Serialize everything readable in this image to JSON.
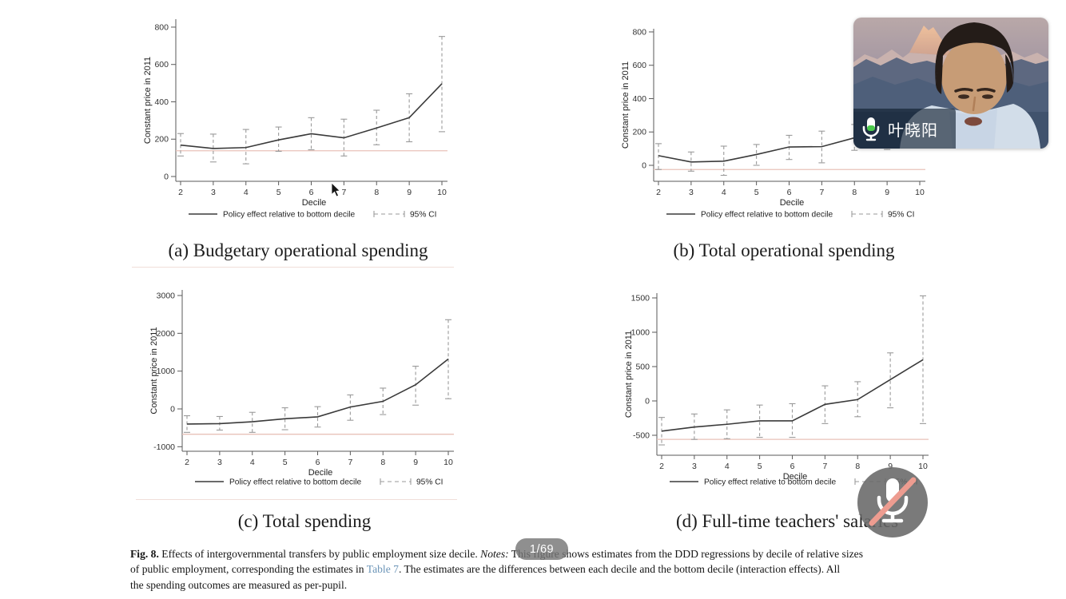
{
  "video_call": {
    "participant_name": "叶晓阳",
    "page_indicator": "1/69",
    "mic_status": "muted"
  },
  "style": {
    "line_color": "#3a3a3a",
    "ci_color": "#9a9a9a",
    "ref_line_color": "#e9c2b9",
    "axis_color": "#5a5a5a",
    "link_color": "#6b94b7",
    "mic_level_color": "#4ccc4c",
    "mute_slash_color": "#ed9c90"
  },
  "figure": {
    "caption_lines": [
      [
        {
          "s": "bold",
          "t": "Fig. 8."
        },
        {
          "s": "normal",
          "t": " Effects of intergovernmental transfers by public employment size decile. "
        },
        {
          "s": "italic",
          "t": "Notes:"
        },
        {
          "s": "normal",
          "t": " This figure shows estimates from the DDD regressions by decile of relative sizes"
        }
      ],
      [
        {
          "s": "normal",
          "t": "of public employment, corresponding the estimates in "
        },
        {
          "s": "link",
          "t": "Table 7"
        },
        {
          "s": "normal",
          "t": ". The estimates are the differences between each decile and the bottom decile (interaction effects). All"
        }
      ],
      [
        {
          "s": "normal",
          "t": "the spending outcomes are measured as per-pupil."
        }
      ]
    ]
  },
  "chart_data": [
    {
      "type": "line",
      "title": "(a) Budgetary operational spending",
      "xlabel": "Decile",
      "ylabel": "Constant price in 2011",
      "x": [
        2,
        3,
        4,
        5,
        6,
        7,
        8,
        9,
        10
      ],
      "y_ticks": [
        0,
        200,
        400,
        600,
        800
      ],
      "ylim": [
        -30,
        870
      ],
      "series": [
        {
          "name": "Policy effect relative to bottom decile",
          "values": [
            168,
            150,
            155,
            196,
            229,
            207,
            260,
            315,
            497
          ]
        }
      ],
      "ci_low": [
        110,
        78,
        68,
        135,
        143,
        110,
        170,
        186,
        240
      ],
      "ci_high": [
        230,
        227,
        252,
        265,
        315,
        307,
        355,
        443,
        750
      ],
      "ci_label": "95% CI",
      "ref_line": 138
    },
    {
      "type": "line",
      "title": "(b) Total operational spending",
      "xlabel": "Decile",
      "ylabel": "Constant price in 2011",
      "x": [
        2,
        3,
        4,
        5,
        6,
        7,
        8,
        9,
        10
      ],
      "y_ticks": [
        0,
        200,
        400,
        600,
        800
      ],
      "ylim": [
        -95,
        880
      ],
      "series": [
        {
          "name": "Policy effect relative to bottom decile",
          "values": [
            58,
            20,
            25,
            65,
            110,
            112,
            165,
            185,
            215
          ]
        }
      ],
      "ci_low": [
        -25,
        -35,
        -60,
        0,
        35,
        15,
        90,
        95,
        110
      ],
      "ci_high": [
        130,
        80,
        115,
        125,
        180,
        205,
        245,
        265,
        320
      ],
      "ci_label": "95% CI",
      "ref_line": -25
    },
    {
      "type": "line",
      "title": "(c) Total spending",
      "xlabel": "Decile",
      "ylabel": "Constant price in 2011",
      "x": [
        2,
        3,
        4,
        5,
        6,
        7,
        8,
        9,
        10
      ],
      "y_ticks": [
        -1000,
        0,
        1000,
        2000,
        3000
      ],
      "ylim": [
        -1120,
        3150
      ],
      "series": [
        {
          "name": "Policy effect relative to bottom decile",
          "values": [
            -400,
            -390,
            -340,
            -260,
            -210,
            50,
            200,
            640,
            1320
          ]
        }
      ],
      "ci_low": [
        -620,
        -560,
        -620,
        -550,
        -480,
        -300,
        -150,
        100,
        270
      ],
      "ci_high": [
        -180,
        -200,
        -90,
        30,
        60,
        370,
        550,
        1130,
        2360
      ],
      "ci_label": "95% CI",
      "ref_line": -670
    },
    {
      "type": "line",
      "title": "(d) Full-time teachers' salaries",
      "xlabel": "Decile",
      "ylabel": "Constant price in 2011",
      "x": [
        2,
        3,
        4,
        5,
        6,
        7,
        8,
        9,
        10
      ],
      "y_ticks": [
        -500,
        0,
        500,
        1000,
        1500
      ],
      "ylim": [
        -790,
        1580
      ],
      "series": [
        {
          "name": "Policy effect relative to bottom decile",
          "values": [
            -440,
            -380,
            -340,
            -290,
            -290,
            -50,
            20,
            310,
            600
          ]
        }
      ],
      "ci_low": [
        -640,
        -560,
        -550,
        -530,
        -530,
        -330,
        -230,
        -100,
        -330
      ],
      "ci_high": [
        -240,
        -190,
        -130,
        -60,
        -40,
        220,
        280,
        700,
        1530
      ],
      "ci_label": "95% CI",
      "ref_line": -560
    }
  ]
}
